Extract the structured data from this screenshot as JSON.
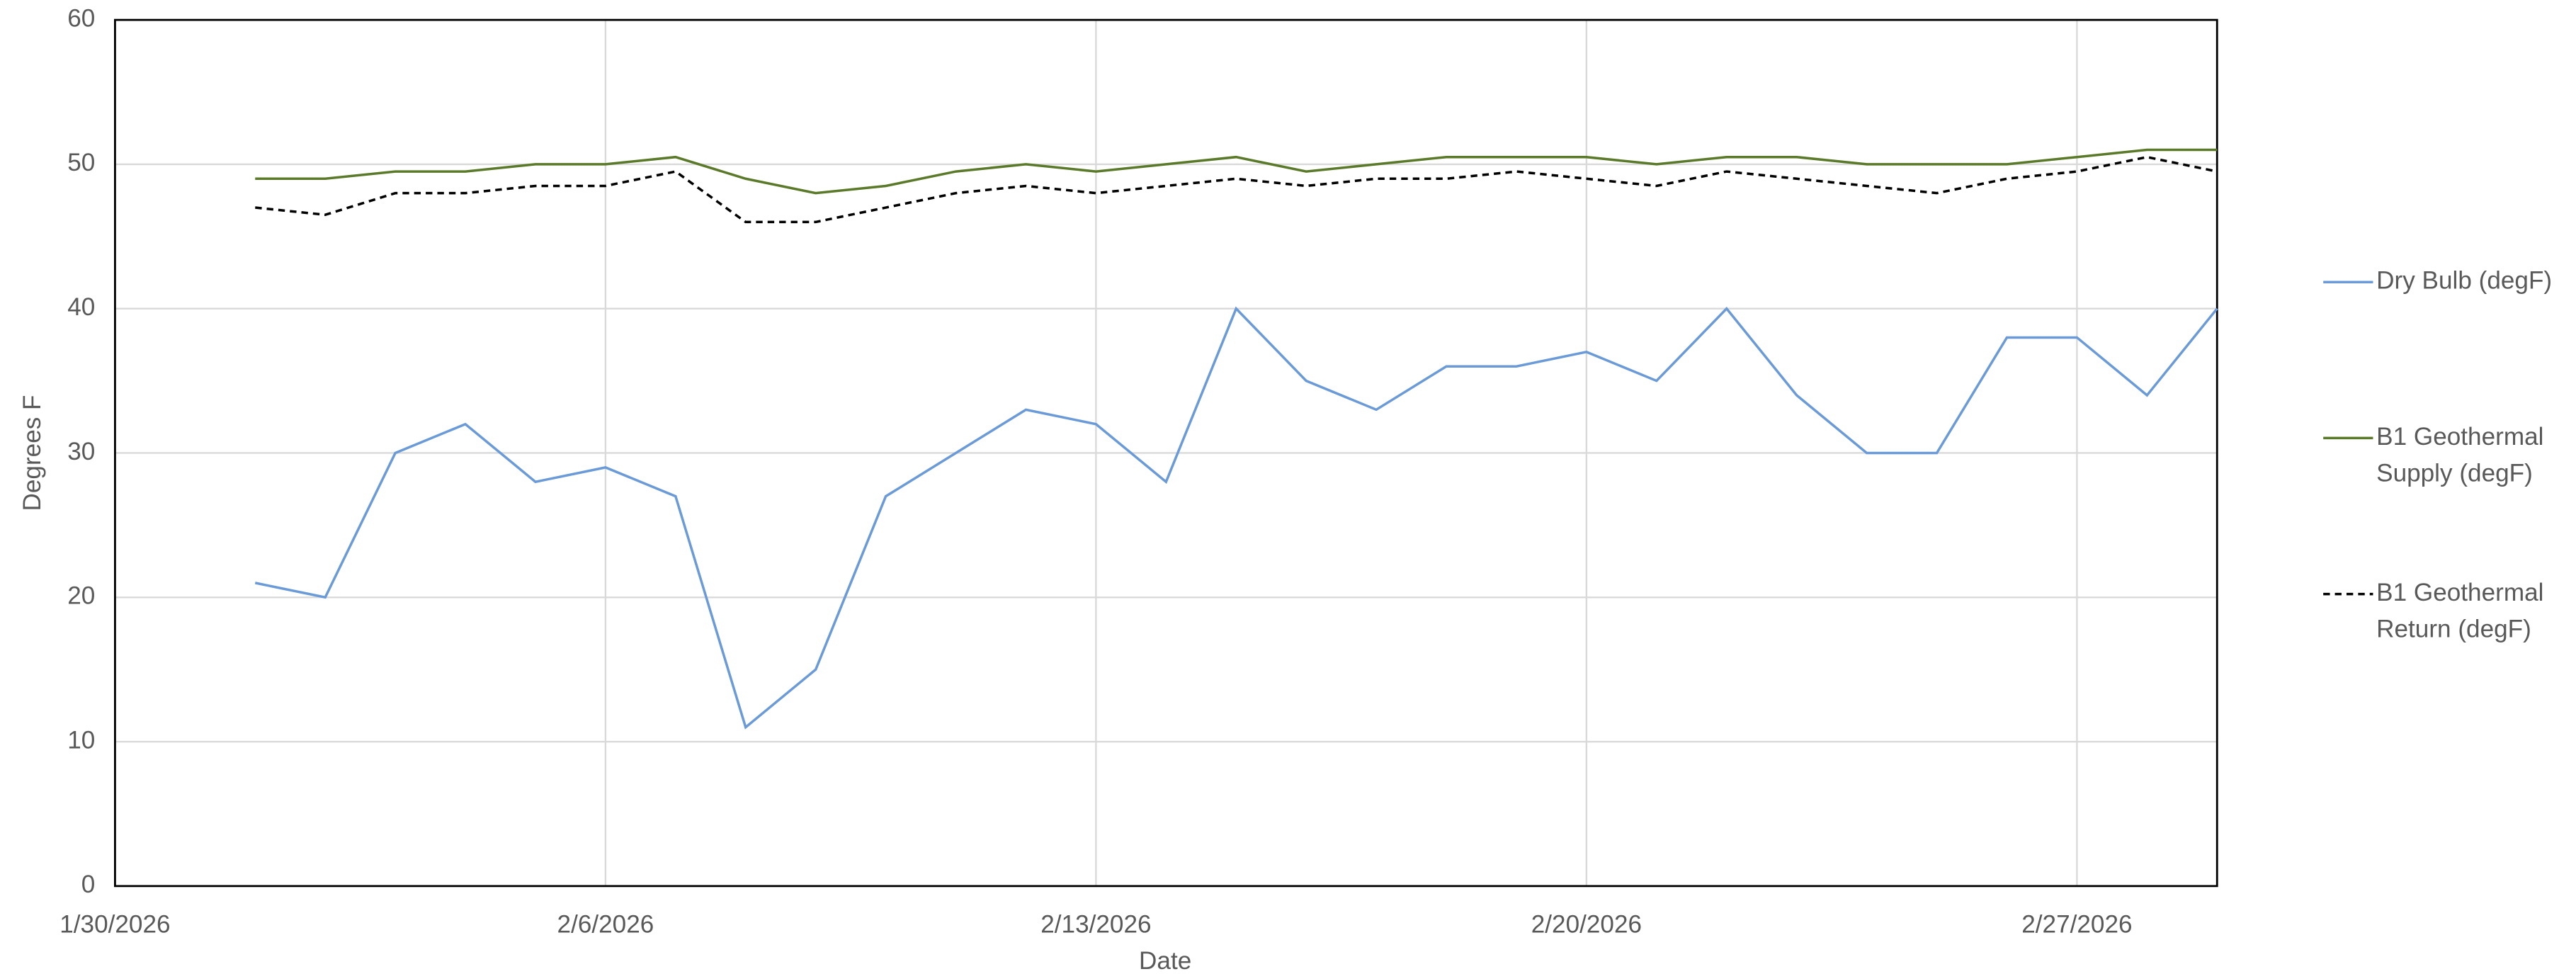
{
  "chart_data": {
    "type": "line",
    "x_label": "Date",
    "y_label": "Degrees F",
    "x": [
      "2026-02-01",
      "2026-02-02",
      "2026-02-03",
      "2026-02-04",
      "2026-02-05",
      "2026-02-06",
      "2026-02-07",
      "2026-02-08",
      "2026-02-09",
      "2026-02-10",
      "2026-02-11",
      "2026-02-12",
      "2026-02-13",
      "2026-02-14",
      "2026-02-15",
      "2026-02-16",
      "2026-02-17",
      "2026-02-18",
      "2026-02-19",
      "2026-02-20",
      "2026-02-21",
      "2026-02-22",
      "2026-02-23",
      "2026-02-24",
      "2026-02-25",
      "2026-02-26",
      "2026-02-27",
      "2026-02-28",
      "2026-03-01"
    ],
    "series": [
      {
        "name": "Dry Bulb (degF)",
        "color": "#6a9bd8",
        "dash": "solid",
        "values": [
          21,
          20,
          30,
          32,
          28,
          29,
          27,
          11,
          15,
          27,
          30,
          33,
          32,
          28,
          40,
          35,
          33,
          36,
          36,
          37,
          35,
          40,
          34,
          30,
          30,
          38,
          38,
          34,
          40
        ]
      },
      {
        "name": "B1 Geothermal Supply (degF)",
        "color": "#5a7a2a",
        "dash": "solid",
        "values": [
          49,
          49,
          49.5,
          49.5,
          50,
          50,
          50.5,
          49,
          48,
          48.5,
          49.5,
          50,
          49.5,
          50,
          50.5,
          49.5,
          50,
          50.5,
          50.5,
          50.5,
          50,
          50.5,
          50.5,
          50,
          50,
          50,
          50.5,
          51,
          51
        ]
      },
      {
        "name": "B1 Geothermal Return (degF)",
        "color": "#000000",
        "dash": "dashed",
        "values": [
          47,
          46.5,
          48,
          48,
          48.5,
          48.5,
          49.5,
          46,
          46,
          47,
          48,
          48.5,
          48,
          48.5,
          49,
          48.5,
          49,
          49,
          49.5,
          49,
          48.5,
          49.5,
          49,
          48.5,
          48,
          49,
          49.5,
          50.5,
          49.5
        ]
      }
    ],
    "xlim": [
      "2026-01-30",
      "2026-03-01"
    ],
    "xticks": [
      {
        "value": "2026-01-30",
        "label": "1/30/2026"
      },
      {
        "value": "2026-02-06",
        "label": "2/6/2026"
      },
      {
        "value": "2026-02-13",
        "label": "2/13/2026"
      },
      {
        "value": "2026-02-20",
        "label": "2/20/2026"
      },
      {
        "value": "2026-02-27",
        "label": "2/27/2026"
      }
    ],
    "ylim": [
      0,
      60
    ],
    "yticks": [
      0,
      10,
      20,
      30,
      40,
      50,
      60
    ],
    "grid": true,
    "legend": "right"
  }
}
